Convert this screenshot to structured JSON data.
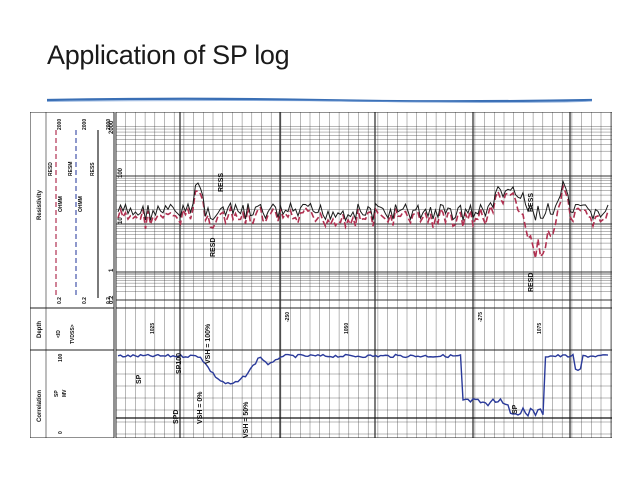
{
  "slide": {
    "title": "Application of SP log"
  },
  "header_panels": {
    "resistivity": {
      "track_label": "Resistivity",
      "curves": [
        "RESD",
        "OHMM",
        "RESM",
        "OHMM",
        "RESS"
      ],
      "scale_left": "0.2",
      "scale_right": "2000",
      "scale_left_2": "0.2",
      "scale_right_2": "2000",
      "scale_left_3": "0.2",
      "scale_right_3": "2000"
    },
    "depth": {
      "track_label": "Depth",
      "unit": "<ID",
      "sub": "TVDSS>"
    },
    "correlation": {
      "track_label": "Correlation",
      "curve": "SP",
      "unit": "MV",
      "scale_left": "0",
      "scale_right": "100"
    }
  },
  "resistivity_track": {
    "ticks": [
      "0.2",
      "1",
      "10",
      "100",
      "2000"
    ],
    "annotations": [
      "RESD",
      "RESS",
      "RESD",
      "RESS"
    ]
  },
  "depth_track": {
    "md": [
      "1025",
      "1050",
      "1075"
    ],
    "tvdss": [
      "-250",
      "-275"
    ]
  },
  "correlation_track": {
    "annotations": [
      "SP",
      "SP100",
      "VSH = 100%",
      "VSH = 0%",
      "SPD",
      "VSH = 50%",
      "SP"
    ]
  },
  "colors": {
    "resd": "#1a1a1a",
    "ress": "#b03050",
    "sp": "#2a3a9a",
    "rule": "#3a6fb5"
  }
}
